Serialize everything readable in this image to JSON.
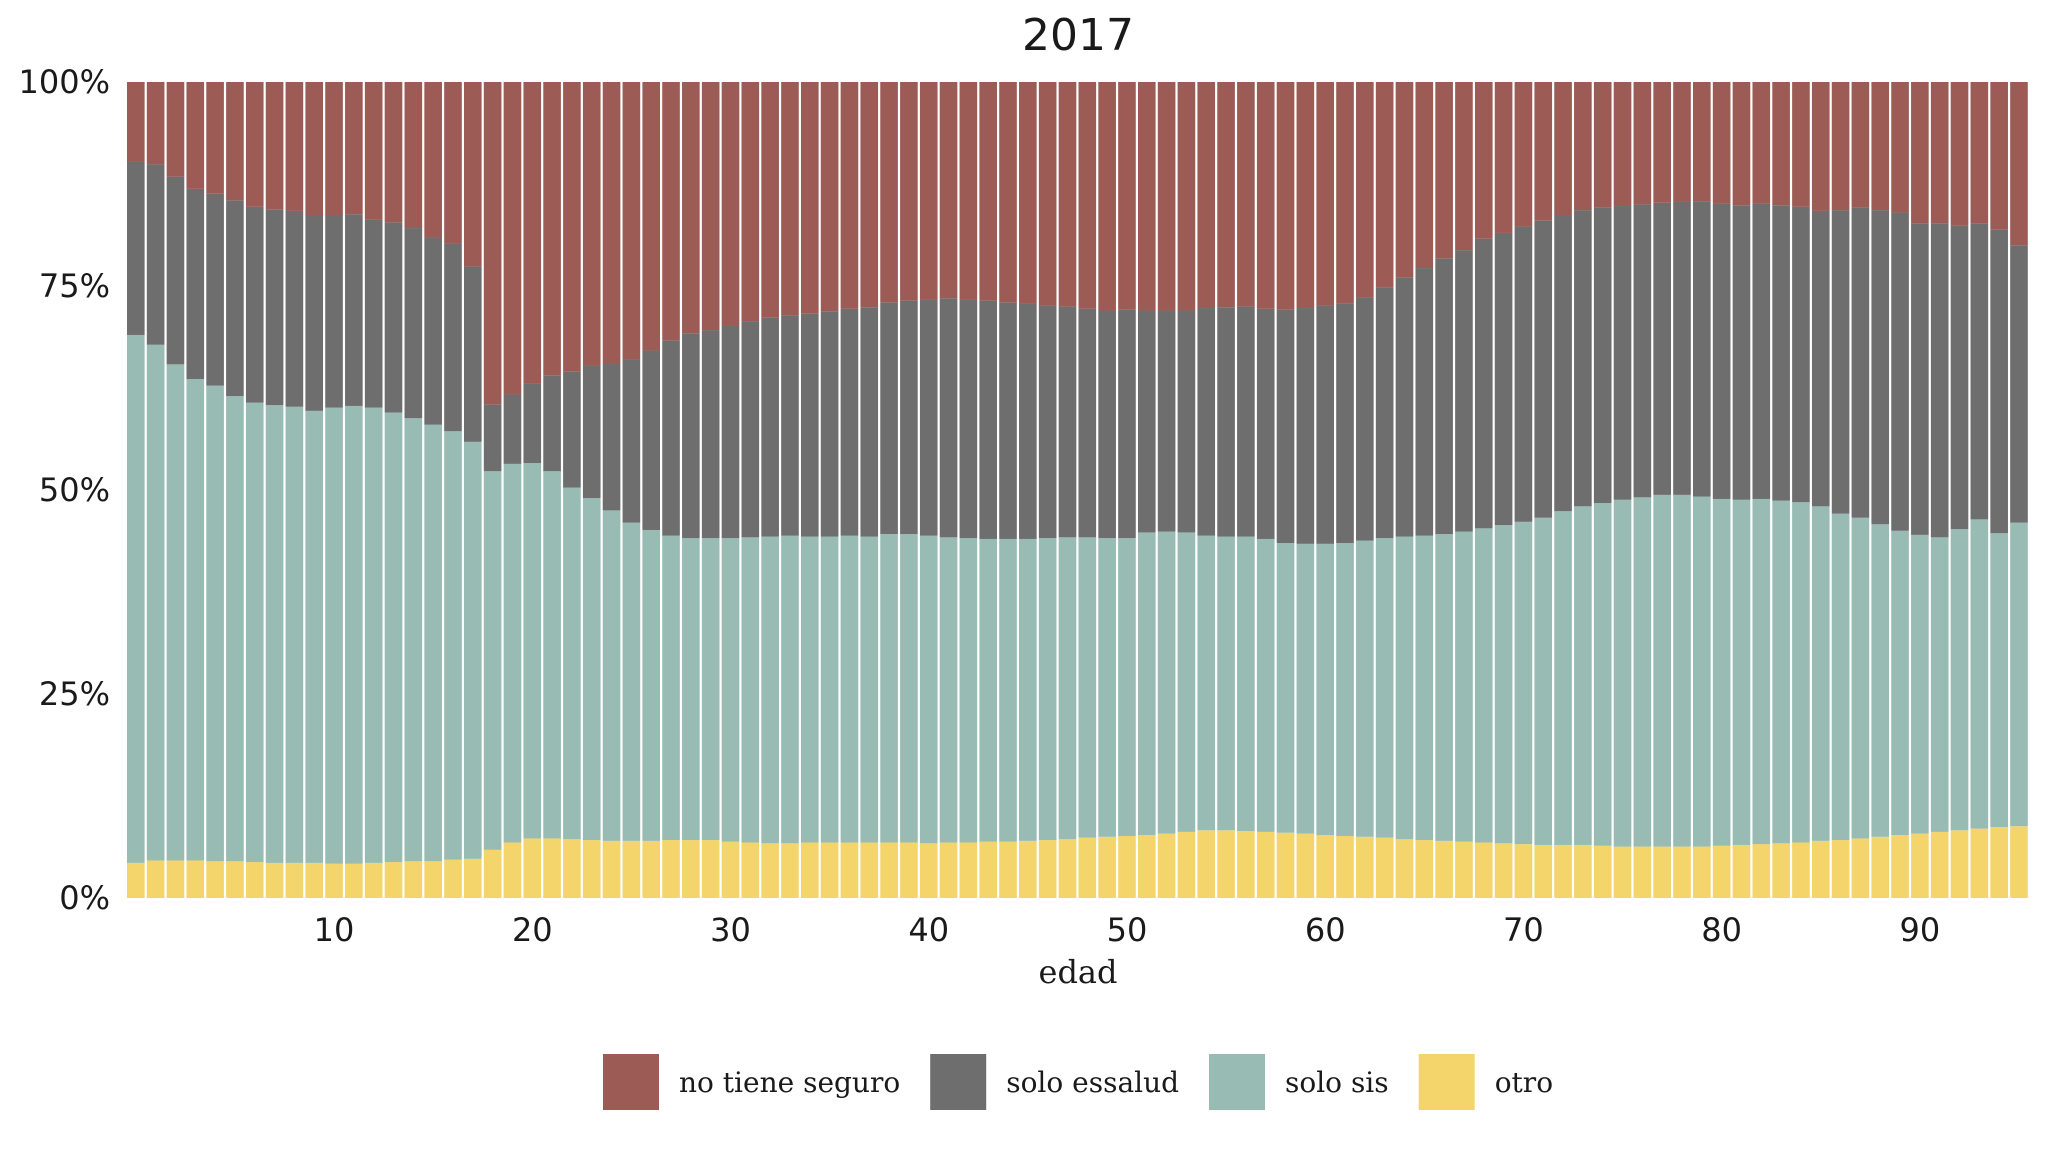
{
  "chart_data": {
    "type": "bar",
    "stacked": "percent",
    "title": "2017",
    "xlabel": "edad",
    "ylabel": "",
    "x_ticks": [
      10,
      20,
      30,
      40,
      50,
      60,
      70,
      80,
      90
    ],
    "y_ticks": [
      "0%",
      "25%",
      "50%",
      "75%",
      "100%"
    ],
    "ylim": [
      0,
      1
    ],
    "x_range": [
      0,
      95
    ],
    "grid": false,
    "legend_position": "bottom",
    "x": [
      0,
      1,
      2,
      3,
      4,
      5,
      6,
      7,
      8,
      9,
      10,
      11,
      12,
      13,
      14,
      15,
      16,
      17,
      18,
      19,
      20,
      21,
      22,
      23,
      24,
      25,
      26,
      27,
      28,
      29,
      30,
      31,
      32,
      33,
      34,
      35,
      36,
      37,
      38,
      39,
      40,
      41,
      42,
      43,
      44,
      45,
      46,
      47,
      48,
      49,
      50,
      51,
      52,
      53,
      54,
      55,
      56,
      57,
      58,
      59,
      60,
      61,
      62,
      63,
      64,
      65,
      66,
      67,
      68,
      69,
      70,
      71,
      72,
      73,
      74,
      75,
      76,
      77,
      78,
      79,
      80,
      81,
      82,
      83,
      84,
      85,
      86,
      87,
      88,
      89,
      90,
      91,
      92,
      93,
      94,
      95
    ],
    "series": [
      {
        "name": "otro",
        "color": "#F3D56C",
        "values": [
          0.043,
          0.046,
          0.046,
          0.046,
          0.045,
          0.045,
          0.044,
          0.043,
          0.043,
          0.043,
          0.042,
          0.042,
          0.043,
          0.044,
          0.045,
          0.045,
          0.047,
          0.048,
          0.059,
          0.068,
          0.073,
          0.073,
          0.072,
          0.071,
          0.07,
          0.07,
          0.07,
          0.071,
          0.071,
          0.071,
          0.069,
          0.068,
          0.067,
          0.067,
          0.068,
          0.068,
          0.068,
          0.068,
          0.068,
          0.068,
          0.067,
          0.068,
          0.068,
          0.069,
          0.069,
          0.07,
          0.071,
          0.072,
          0.074,
          0.075,
          0.076,
          0.077,
          0.079,
          0.081,
          0.083,
          0.083,
          0.082,
          0.081,
          0.08,
          0.079,
          0.077,
          0.076,
          0.075,
          0.074,
          0.072,
          0.071,
          0.07,
          0.069,
          0.068,
          0.067,
          0.066,
          0.065,
          0.065,
          0.065,
          0.064,
          0.063,
          0.063,
          0.063,
          0.063,
          0.063,
          0.064,
          0.065,
          0.066,
          0.067,
          0.068,
          0.07,
          0.071,
          0.073,
          0.075,
          0.077,
          0.079,
          0.081,
          0.083,
          0.085,
          0.087,
          0.088
        ]
      },
      {
        "name": "solo sis",
        "color": "#98BBB3",
        "values": [
          0.647,
          0.632,
          0.608,
          0.59,
          0.583,
          0.57,
          0.563,
          0.561,
          0.559,
          0.554,
          0.559,
          0.561,
          0.558,
          0.551,
          0.543,
          0.535,
          0.525,
          0.511,
          0.464,
          0.464,
          0.46,
          0.45,
          0.431,
          0.419,
          0.405,
          0.39,
          0.381,
          0.373,
          0.37,
          0.37,
          0.372,
          0.374,
          0.376,
          0.377,
          0.375,
          0.375,
          0.376,
          0.375,
          0.378,
          0.378,
          0.377,
          0.374,
          0.373,
          0.371,
          0.371,
          0.37,
          0.37,
          0.37,
          0.368,
          0.366,
          0.365,
          0.371,
          0.37,
          0.367,
          0.361,
          0.36,
          0.361,
          0.359,
          0.355,
          0.355,
          0.357,
          0.359,
          0.363,
          0.367,
          0.371,
          0.373,
          0.376,
          0.38,
          0.385,
          0.39,
          0.395,
          0.401,
          0.409,
          0.415,
          0.42,
          0.425,
          0.428,
          0.431,
          0.431,
          0.429,
          0.425,
          0.423,
          0.423,
          0.42,
          0.417,
          0.41,
          0.4,
          0.393,
          0.383,
          0.373,
          0.366,
          0.361,
          0.369,
          0.379,
          0.36,
          0.372
        ]
      },
      {
        "name": "solo essalud",
        "color": "#6E6E6E",
        "values": [
          0.212,
          0.221,
          0.23,
          0.233,
          0.235,
          0.24,
          0.24,
          0.24,
          0.24,
          0.24,
          0.236,
          0.235,
          0.23,
          0.233,
          0.233,
          0.23,
          0.23,
          0.215,
          0.082,
          0.085,
          0.097,
          0.117,
          0.142,
          0.162,
          0.18,
          0.2,
          0.22,
          0.239,
          0.251,
          0.255,
          0.26,
          0.265,
          0.268,
          0.27,
          0.273,
          0.276,
          0.278,
          0.281,
          0.284,
          0.286,
          0.29,
          0.293,
          0.293,
          0.292,
          0.29,
          0.288,
          0.285,
          0.283,
          0.28,
          0.279,
          0.28,
          0.272,
          0.271,
          0.272,
          0.279,
          0.281,
          0.282,
          0.282,
          0.286,
          0.289,
          0.292,
          0.294,
          0.298,
          0.307,
          0.317,
          0.328,
          0.338,
          0.345,
          0.355,
          0.358,
          0.362,
          0.364,
          0.363,
          0.363,
          0.362,
          0.36,
          0.359,
          0.358,
          0.359,
          0.362,
          0.362,
          0.361,
          0.362,
          0.362,
          0.362,
          0.362,
          0.372,
          0.38,
          0.385,
          0.39,
          0.382,
          0.385,
          0.372,
          0.363,
          0.372,
          0.34
        ]
      },
      {
        "name": "no tiene seguro",
        "color": "#9C5B55",
        "values": [
          0.098,
          0.101,
          0.116,
          0.131,
          0.137,
          0.145,
          0.153,
          0.156,
          0.158,
          0.163,
          0.163,
          0.162,
          0.169,
          0.172,
          0.179,
          0.19,
          0.198,
          0.226,
          0.395,
          0.383,
          0.37,
          0.36,
          0.355,
          0.348,
          0.345,
          0.34,
          0.329,
          0.317,
          0.308,
          0.304,
          0.299,
          0.293,
          0.289,
          0.286,
          0.284,
          0.281,
          0.278,
          0.276,
          0.27,
          0.268,
          0.266,
          0.265,
          0.266,
          0.268,
          0.27,
          0.272,
          0.274,
          0.275,
          0.278,
          0.28,
          0.279,
          0.28,
          0.28,
          0.28,
          0.277,
          0.276,
          0.275,
          0.278,
          0.279,
          0.277,
          0.274,
          0.271,
          0.264,
          0.252,
          0.24,
          0.228,
          0.216,
          0.206,
          0.192,
          0.185,
          0.177,
          0.17,
          0.163,
          0.157,
          0.154,
          0.152,
          0.15,
          0.148,
          0.147,
          0.146,
          0.149,
          0.151,
          0.149,
          0.151,
          0.153,
          0.158,
          0.157,
          0.154,
          0.157,
          0.16,
          0.173,
          0.173,
          0.176,
          0.173,
          0.181,
          0.2
        ]
      }
    ],
    "legend": [
      "no tiene seguro",
      "solo essalud",
      "solo sis",
      "otro"
    ]
  }
}
